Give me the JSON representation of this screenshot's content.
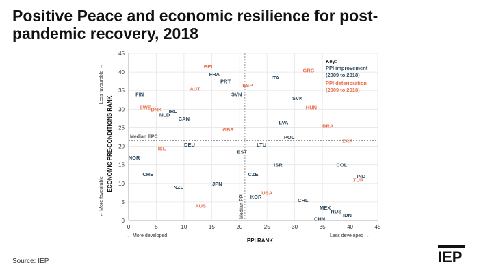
{
  "title": "Positive Peace and economic resilience for post-pandemic recovery, 2018",
  "source": "Source: IEP",
  "logo": "IEP",
  "colors": {
    "improvement": "#2f4a5e",
    "deterioration": "#e8714f",
    "median_line": "#888888"
  },
  "chart_data": {
    "type": "scatter",
    "xlabel": "PPI RANK",
    "ylabel": "ECONOMIC PRE-CONDITIONS RANK",
    "xlim": [
      0,
      45
    ],
    "ylim": [
      0,
      45
    ],
    "xticks": [
      0,
      5,
      10,
      15,
      20,
      25,
      30,
      35,
      40,
      45
    ],
    "yticks": [
      0,
      5,
      10,
      15,
      20,
      25,
      30,
      35,
      40,
      45
    ],
    "x_left_note": "← More developed",
    "x_right_note": "Less developed →",
    "y_top_note": "Less favourable →",
    "y_bottom_note": "← More favourable",
    "median_ppi": {
      "label": "Median PPI",
      "value": 21
    },
    "median_epc": {
      "label": "Median EPC",
      "value": 21.5
    },
    "key": {
      "title": "Key:",
      "improvement": "PPI improvement (2009 to 2018)",
      "deterioration": "PPI deterioration (2009 to 2018)"
    },
    "series": [
      {
        "name": "PPI improvement (2009 to 2018)",
        "group": "improvement",
        "points": [
          {
            "label": "FRA",
            "x": 15.5,
            "y": 39.5
          },
          {
            "label": "PRT",
            "x": 17.5,
            "y": 37.5
          },
          {
            "label": "ITA",
            "x": 26.5,
            "y": 38.5
          },
          {
            "label": "FIN",
            "x": 2,
            "y": 34
          },
          {
            "label": "SVN",
            "x": 19.5,
            "y": 34
          },
          {
            "label": "SVK",
            "x": 30.5,
            "y": 33
          },
          {
            "label": "IRL",
            "x": 8,
            "y": 29.5
          },
          {
            "label": "NLD",
            "x": 6.5,
            "y": 28.5
          },
          {
            "label": "CAN",
            "x": 10,
            "y": 27.5
          },
          {
            "label": "LVA",
            "x": 28,
            "y": 26.5
          },
          {
            "label": "POL",
            "x": 29,
            "y": 22.5
          },
          {
            "label": "DEU",
            "x": 11,
            "y": 20.5
          },
          {
            "label": "LTU",
            "x": 24,
            "y": 20.5
          },
          {
            "label": "EST",
            "x": 20.5,
            "y": 18.5
          },
          {
            "label": "NOR",
            "x": 1,
            "y": 17
          },
          {
            "label": "ISR",
            "x": 27,
            "y": 15
          },
          {
            "label": "COL",
            "x": 38.5,
            "y": 15
          },
          {
            "label": "CHE",
            "x": 3.5,
            "y": 12.5
          },
          {
            "label": "CZE",
            "x": 22.5,
            "y": 12.5
          },
          {
            "label": "IND",
            "x": 42,
            "y": 12
          },
          {
            "label": "JPN",
            "x": 16,
            "y": 10
          },
          {
            "label": "NZL",
            "x": 9,
            "y": 9
          },
          {
            "label": "KOR",
            "x": 23,
            "y": 6.5
          },
          {
            "label": "CHL",
            "x": 31.5,
            "y": 5.5
          },
          {
            "label": "MEX",
            "x": 35.5,
            "y": 3.5
          },
          {
            "label": "RUS",
            "x": 37.5,
            "y": 2.5
          },
          {
            "label": "IDN",
            "x": 39.5,
            "y": 1.5
          },
          {
            "label": "CHN",
            "x": 34.5,
            "y": 0.5
          }
        ]
      },
      {
        "name": "PPI deterioration (2009 to 2018)",
        "group": "deterioration",
        "points": [
          {
            "label": "BEL",
            "x": 14.5,
            "y": 41.5
          },
          {
            "label": "GRC",
            "x": 32.5,
            "y": 40.5
          },
          {
            "label": "ESP",
            "x": 21.5,
            "y": 36.5
          },
          {
            "label": "AUT",
            "x": 12,
            "y": 35.5
          },
          {
            "label": "SWE",
            "x": 3,
            "y": 30.5
          },
          {
            "label": "DNK",
            "x": 5,
            "y": 30
          },
          {
            "label": "HUN",
            "x": 33,
            "y": 30.5
          },
          {
            "label": "GBR",
            "x": 18,
            "y": 24.5
          },
          {
            "label": "BRA",
            "x": 36,
            "y": 25.5
          },
          {
            "label": "ZAF",
            "x": 39.5,
            "y": 21.5
          },
          {
            "label": "ISL",
            "x": 6,
            "y": 19.5
          },
          {
            "label": "TUR",
            "x": 41.5,
            "y": 11
          },
          {
            "label": "USA",
            "x": 25,
            "y": 7.5
          },
          {
            "label": "AUS",
            "x": 13,
            "y": 4
          }
        ]
      }
    ]
  }
}
